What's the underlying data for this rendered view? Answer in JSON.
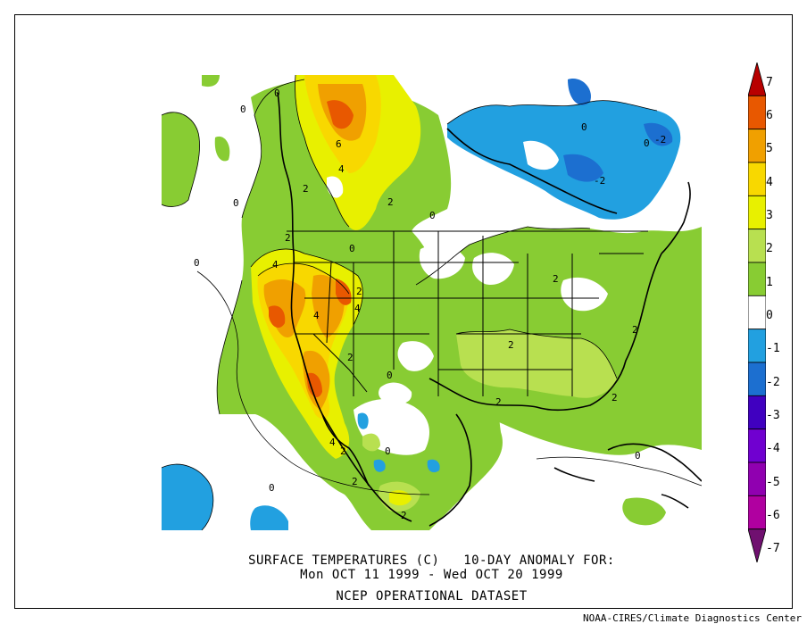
{
  "title": {
    "line1": "SURFACE TEMPERATURES (C)   10-DAY ANOMALY FOR:",
    "line2": "Mon OCT 11 1999 - Wed OCT 20 1999",
    "line3": "NCEP OPERATIONAL DATASET"
  },
  "credit": "NOAA-CIRES/Climate Diagnostics Center",
  "colorbar": {
    "labels": [
      "7",
      "6",
      "5",
      "4",
      "3",
      "2",
      "1",
      "0",
      "-1",
      "-2",
      "-3",
      "-4",
      "-5",
      "-6",
      "-7"
    ],
    "colors": [
      "#b80000",
      "#e85800",
      "#f0a000",
      "#f8d800",
      "#e8f000",
      "#b8e050",
      "#88cc33",
      "#ffffff",
      "#22a0e0",
      "#1c6fd0",
      "#4000c0",
      "#7000d0",
      "#9000b0",
      "#b000a0",
      "#701070"
    ]
  },
  "contour_labels": [
    "0",
    "0",
    "0",
    "0",
    "0",
    "0",
    "0",
    "0",
    "0",
    "0",
    "0",
    "0",
    "2",
    "2",
    "2",
    "2",
    "2",
    "2",
    "2",
    "2",
    "2",
    "2",
    "2",
    "2",
    "2",
    "4",
    "4",
    "4",
    "4",
    "4",
    "6",
    "-2",
    "-2"
  ],
  "map_colors": {
    "green": "#88cc33",
    "yellowgreen": "#b8e050",
    "yellow": "#e8f000",
    "gold": "#f8d800",
    "orange": "#f0a000",
    "darkorange": "#e85800",
    "lightblue": "#22a0e0",
    "blue": "#1c6fd0"
  }
}
